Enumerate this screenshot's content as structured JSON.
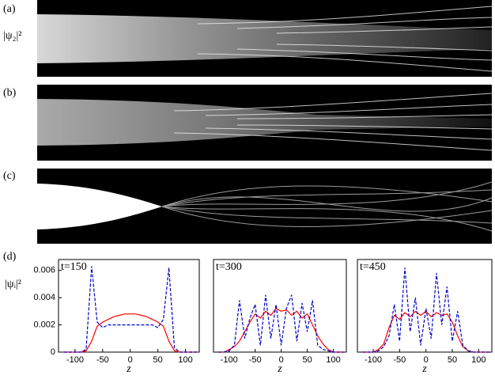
{
  "figure": {
    "panel_labels": [
      "(a)",
      "(b)",
      "(c)",
      "(d)"
    ],
    "top_ylabel": "|ψ₂|²"
  },
  "chart_data": [
    {
      "type": "line",
      "annotation": "t=150",
      "xlabel": "z",
      "ylabel": "|ψᵢ|²",
      "x": [
        -120,
        -110,
        -100,
        -90,
        -80,
        -70,
        -60,
        -50,
        -40,
        -30,
        -20,
        -10,
        0,
        10,
        20,
        30,
        40,
        50,
        60,
        70,
        80,
        90,
        100,
        110,
        120
      ],
      "xlim": [
        -130,
        125
      ],
      "xticks": [
        -100,
        -50,
        0,
        50,
        100
      ],
      "ylim": [
        0,
        0.0068
      ],
      "yticks": [
        0,
        0.002,
        0.004,
        0.006
      ],
      "series": [
        {
          "color": "#ff0000",
          "linestyle": "solid",
          "values": [
            0,
            0,
            0,
            0,
            0.0001,
            0.0008,
            0.0019,
            0.0022,
            0.0024,
            0.0026,
            0.0027,
            0.0028,
            0.0028,
            0.0028,
            0.0027,
            0.0026,
            0.0024,
            0.0022,
            0.0019,
            0.0008,
            0.0001,
            0,
            0,
            0,
            0
          ]
        },
        {
          "color": "#0000cc",
          "linestyle": "dashed",
          "values": [
            0,
            0,
            0,
            0,
            0.0002,
            0.0063,
            0.0022,
            0.0018,
            0.002,
            0.002,
            0.002,
            0.002,
            0.002,
            0.002,
            0.002,
            0.002,
            0.002,
            0.0018,
            0.0024,
            0.0062,
            0.0003,
            0,
            0,
            0,
            0
          ]
        }
      ]
    },
    {
      "type": "line",
      "annotation": "t=300",
      "xlabel": "z",
      "x": [
        -120,
        -110,
        -100,
        -90,
        -80,
        -70,
        -60,
        -50,
        -40,
        -30,
        -20,
        -10,
        0,
        10,
        20,
        30,
        40,
        50,
        60,
        70,
        80,
        90,
        100,
        110,
        120
      ],
      "xlim": [
        -130,
        125
      ],
      "xticks": [
        -100,
        -50,
        0,
        50,
        100
      ],
      "ylim": [
        0,
        0.0068
      ],
      "series": [
        {
          "color": "#ff0000",
          "linestyle": "solid",
          "values": [
            0,
            0,
            0.0002,
            0.0004,
            0.0008,
            0.0015,
            0.0022,
            0.0028,
            0.0025,
            0.003,
            0.0027,
            0.0032,
            0.003,
            0.0031,
            0.0027,
            0.003,
            0.0025,
            0.0028,
            0.002,
            0.0012,
            0.0006,
            0.0002,
            0,
            0,
            0
          ]
        },
        {
          "color": "#0000cc",
          "linestyle": "dashed",
          "values": [
            0,
            0,
            0.0001,
            0.0005,
            0.0038,
            0.001,
            0.0025,
            0.0035,
            0.0005,
            0.0042,
            0.001,
            0.0035,
            0.0005,
            0.0032,
            0.0042,
            0.0008,
            0.0036,
            0.0015,
            0.0038,
            0.0005,
            0.0002,
            0.0001,
            0,
            0,
            0
          ]
        }
      ]
    },
    {
      "type": "line",
      "annotation": "t=450",
      "xlabel": "z",
      "x": [
        -120,
        -110,
        -100,
        -90,
        -80,
        -70,
        -60,
        -50,
        -40,
        -30,
        -20,
        -10,
        0,
        10,
        20,
        30,
        40,
        50,
        60,
        70,
        80,
        90,
        100,
        110,
        120
      ],
      "xlim": [
        -130,
        125
      ],
      "xticks": [
        -100,
        -50,
        0,
        50,
        100
      ],
      "ylim": [
        0,
        0.0068
      ],
      "series": [
        {
          "color": "#ff0000",
          "linestyle": "solid",
          "values": [
            0,
            0,
            0,
            0.0002,
            0.0006,
            0.0018,
            0.0027,
            0.0024,
            0.0029,
            0.0026,
            0.003,
            0.0027,
            0.003,
            0.0026,
            0.0029,
            0.0027,
            0.0028,
            0.0022,
            0.0012,
            0.0004,
            0.0001,
            0,
            0,
            0,
            0
          ]
        },
        {
          "color": "#0000cc",
          "linestyle": "dashed",
          "values": [
            0,
            0,
            0,
            0.0001,
            0.0004,
            0.0012,
            0.0035,
            0.0008,
            0.0062,
            0.0015,
            0.004,
            0.0005,
            0.0032,
            0.001,
            0.0058,
            0.002,
            0.0048,
            0.0008,
            0.003,
            0.0005,
            0.0001,
            0,
            0,
            0,
            0
          ]
        }
      ]
    }
  ]
}
